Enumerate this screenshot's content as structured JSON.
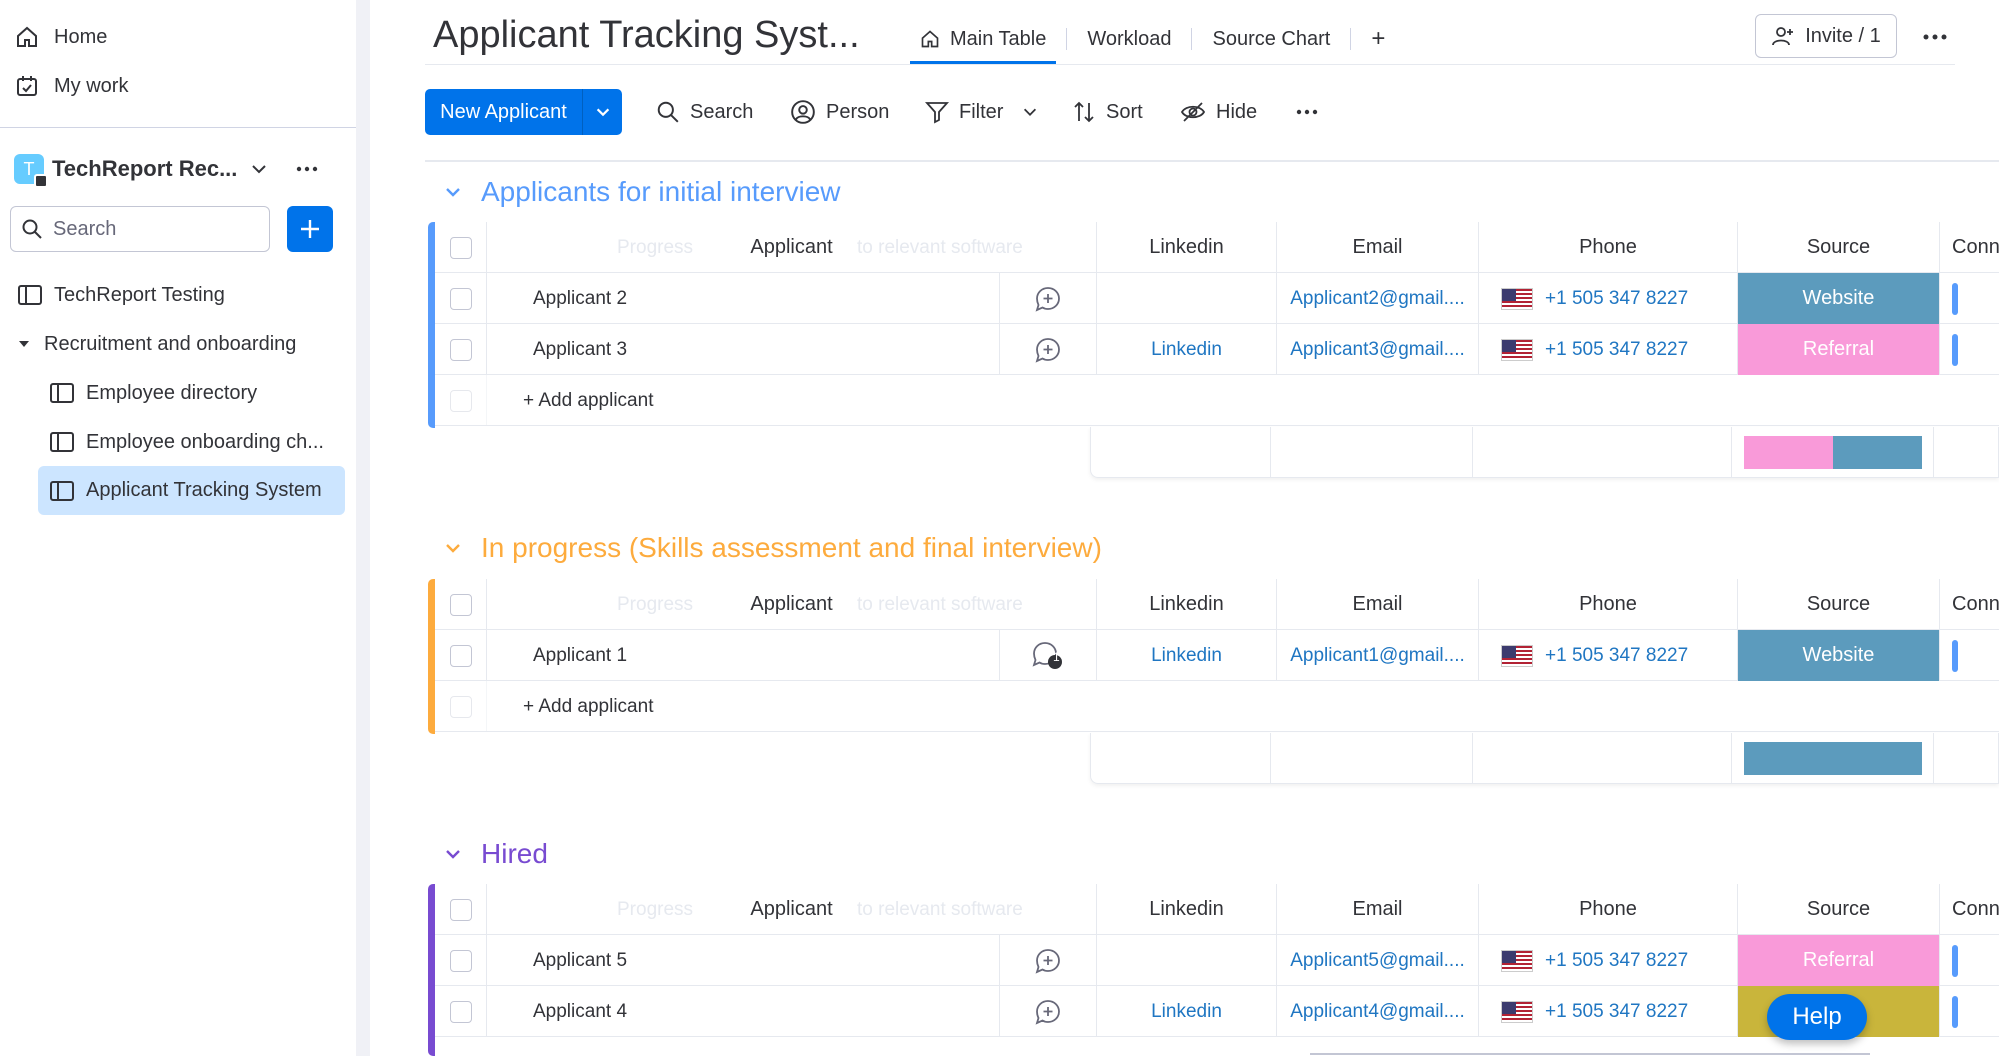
{
  "sidebar": {
    "nav": [
      {
        "label": "Home",
        "icon": "home-icon"
      },
      {
        "label": "My work",
        "icon": "calendar-check-icon"
      }
    ],
    "workspace": {
      "logo_letter": "T",
      "name": "TechReport Rec..."
    },
    "search_placeholder": "Search",
    "items": [
      {
        "label": "TechReport Testing"
      },
      {
        "label": "Recruitment and onboarding"
      },
      {
        "label": "Employee directory"
      },
      {
        "label": "Employee onboarding ch..."
      },
      {
        "label": "Applicant Tracking System"
      }
    ]
  },
  "header": {
    "title": "Applicant Tracking Syst...",
    "tabs": [
      {
        "label": "Main Table",
        "active": true
      },
      {
        "label": "Workload"
      },
      {
        "label": "Source Chart"
      }
    ],
    "add_tab": "+",
    "invite": "Invite / 1"
  },
  "toolbar": {
    "new_label": "New Applicant",
    "search": "Search",
    "person": "Person",
    "filter": "Filter",
    "sort": "Sort",
    "hide": "Hide"
  },
  "columns": {
    "applicant": "Applicant",
    "linkedin": "Linkedin",
    "email": "Email",
    "phone": "Phone",
    "source": "Source",
    "connect": "Conn",
    "ghost_progress": "Progress",
    "ghost_software": "to relevant software"
  },
  "add_row_label": "+ Add applicant",
  "groups": [
    {
      "title": "Applicants for initial interview",
      "color": "#579bfc",
      "rows": [
        {
          "name": "Applicant 2",
          "linkedin": "",
          "email": "Applicant2@gmail....",
          "phone": "+1 505 347 8227",
          "source": "Website",
          "source_color": "#5c9bbd",
          "updates": "0"
        },
        {
          "name": "Applicant 3",
          "linkedin": "Linkedin",
          "email": "Applicant3@gmail....",
          "phone": "+1 505 347 8227",
          "source": "Referral",
          "source_color": "#f99ad9",
          "updates": "0"
        }
      ]
    },
    {
      "title": "In progress (Skills assessment and final interview)",
      "color": "#fdab3d",
      "rows": [
        {
          "name": "Applicant 1",
          "linkedin": "Linkedin",
          "email": "Applicant1@gmail....",
          "phone": "+1 505 347 8227",
          "source": "Website",
          "source_color": "#5c9bbd",
          "updates": "1"
        }
      ]
    },
    {
      "title": "Hired",
      "color": "#784bd1",
      "rows": [
        {
          "name": "Applicant 5",
          "linkedin": "",
          "email": "Applicant5@gmail....",
          "phone": "+1 505 347 8227",
          "source": "Referral",
          "source_color": "#f99ad9",
          "updates": "0"
        },
        {
          "name": "Applicant 4",
          "linkedin": "Linkedin",
          "email": "Applicant4@gmail....",
          "phone": "+1 505 347 8227",
          "source": "",
          "source_color": "#c9b53b",
          "updates": "0"
        }
      ]
    }
  ],
  "help": "Help",
  "colors": {
    "accent": "#0073ea",
    "website": "#5c9bbd",
    "referral": "#f99ad9"
  }
}
